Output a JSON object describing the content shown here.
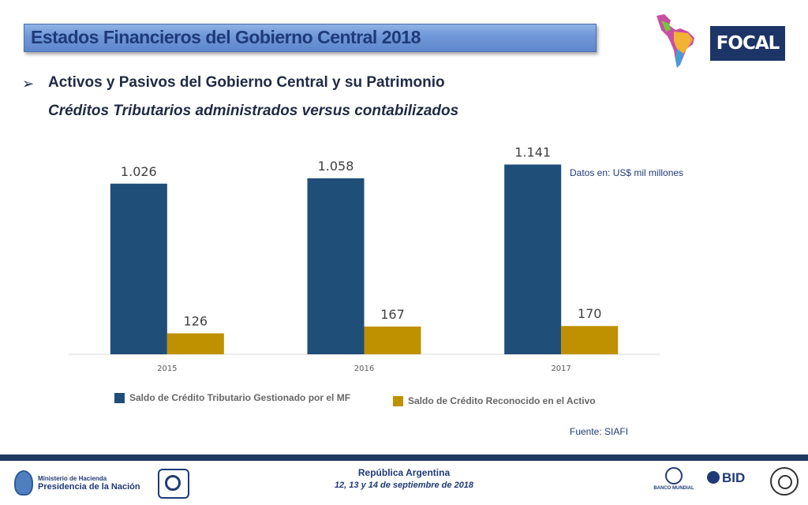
{
  "header": {
    "title": "Estados Financieros del Gobierno Central 2018",
    "logo_text": "FOCAL"
  },
  "section": {
    "bullet_icon": "arrow-bullet-icon",
    "subtitle": "Activos y Pasivos del Gobierno Central y su Patrimonio",
    "subtitle2": "Créditos Tributarios administrados versus contabilizados"
  },
  "notes": {
    "units": "Datos en: US$ mil millones",
    "source": "Fuente: SIAFI"
  },
  "chart_data": {
    "type": "bar",
    "categories": [
      "2015",
      "2016",
      "2017"
    ],
    "series": [
      {
        "name": "Saldo de Crédito Tributario Gestionado por el MF",
        "values": [
          1026,
          1058,
          1141
        ],
        "labels": [
          "1.026",
          "1.058",
          "1.141"
        ],
        "color": "#1f4e79"
      },
      {
        "name": "Saldo de Crédito Reconocido en el Activo",
        "values": [
          126,
          167,
          170
        ],
        "labels": [
          "126",
          "167",
          "170"
        ],
        "color": "#bf9000"
      }
    ],
    "title": "",
    "xlabel": "",
    "ylabel": "",
    "ylim": [
      0,
      1300
    ],
    "grid": false,
    "legend": "bottom"
  },
  "footer": {
    "ministry_line1": "Ministerio de Hacienda",
    "ministry_line2": "Presidencia de la Nación",
    "country": "República Argentina",
    "dates": "12, 13 y 14 de septiembre de 2018",
    "world_bank": "BANCO MUNDIAL",
    "bid": "BID"
  }
}
